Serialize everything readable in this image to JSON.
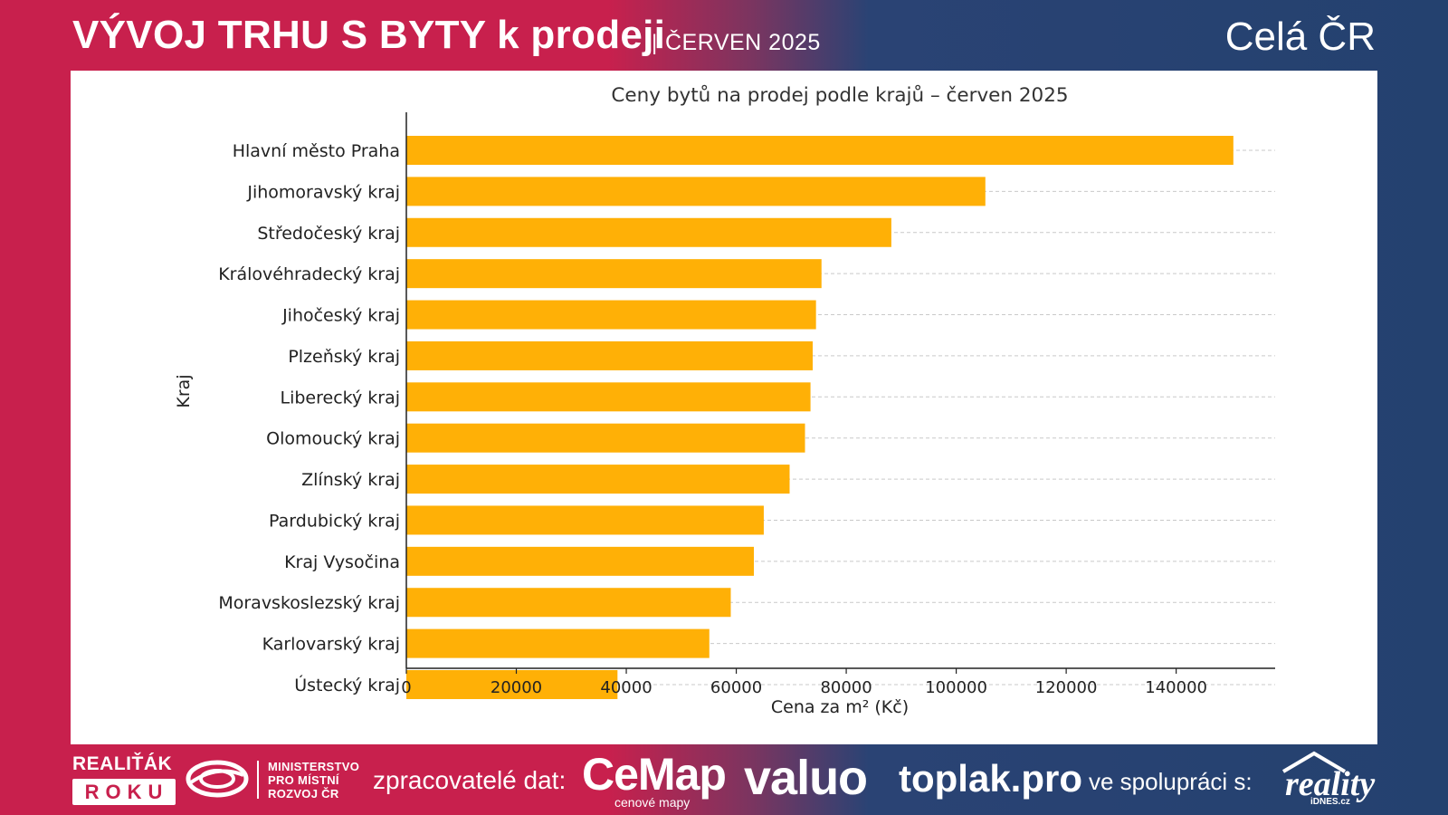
{
  "header": {
    "title": "VÝVOJ TRHU S BYTY k prodeji",
    "separator": "|",
    "subtitle": "ČERVEN 2025",
    "region": "Celá ČR"
  },
  "footer": {
    "realitak_top": "REALIŤÁK",
    "realitak_bottom": "ROKU",
    "ministry_line1": "MINISTERSTVO",
    "ministry_line2": "PRO MÍSTNÍ",
    "ministry_line3": "ROZVOJ ČR",
    "data_processors_label": "zpracovatelé dat:",
    "cemap_name": "CeMap",
    "cemap_tagline": "cenové mapy",
    "valuo": "valuo",
    "toplak": "toplak.pro",
    "cooperation_label": "ve spolupráci s:",
    "reality_word": "reality",
    "reality_sub": "iDNES.cz"
  },
  "colors": {
    "bar": "#FFB006",
    "brand_red": "#c8204d",
    "brand_blue": "#24416f"
  },
  "chart_data": {
    "type": "bar",
    "orientation": "horizontal",
    "title": "Ceny bytů na prodej podle krajů – červen 2025",
    "xlabel": "Cena za m² (Kč)",
    "ylabel": "Kraj",
    "xlim": [
      0,
      158000
    ],
    "xticks": [
      0,
      20000,
      40000,
      60000,
      80000,
      100000,
      120000,
      140000
    ],
    "grid": "horizontal dashed",
    "categories": [
      "Hlavní město Praha",
      "Jihomoravský kraj",
      "Středočeský kraj",
      "Královéhradecký kraj",
      "Jihočeský kraj",
      "Plzeňský kraj",
      "Liberecký kraj",
      "Olomoucký kraj",
      "Zlínský kraj",
      "Pardubický kraj",
      "Kraj Vysočina",
      "Moravskoslezský kraj",
      "Karlovarský kraj",
      "Ústecký kraj"
    ],
    "values": [
      150400,
      105300,
      88200,
      75500,
      74500,
      73900,
      73500,
      72500,
      69700,
      65000,
      63200,
      59000,
      55100,
      38400
    ]
  }
}
